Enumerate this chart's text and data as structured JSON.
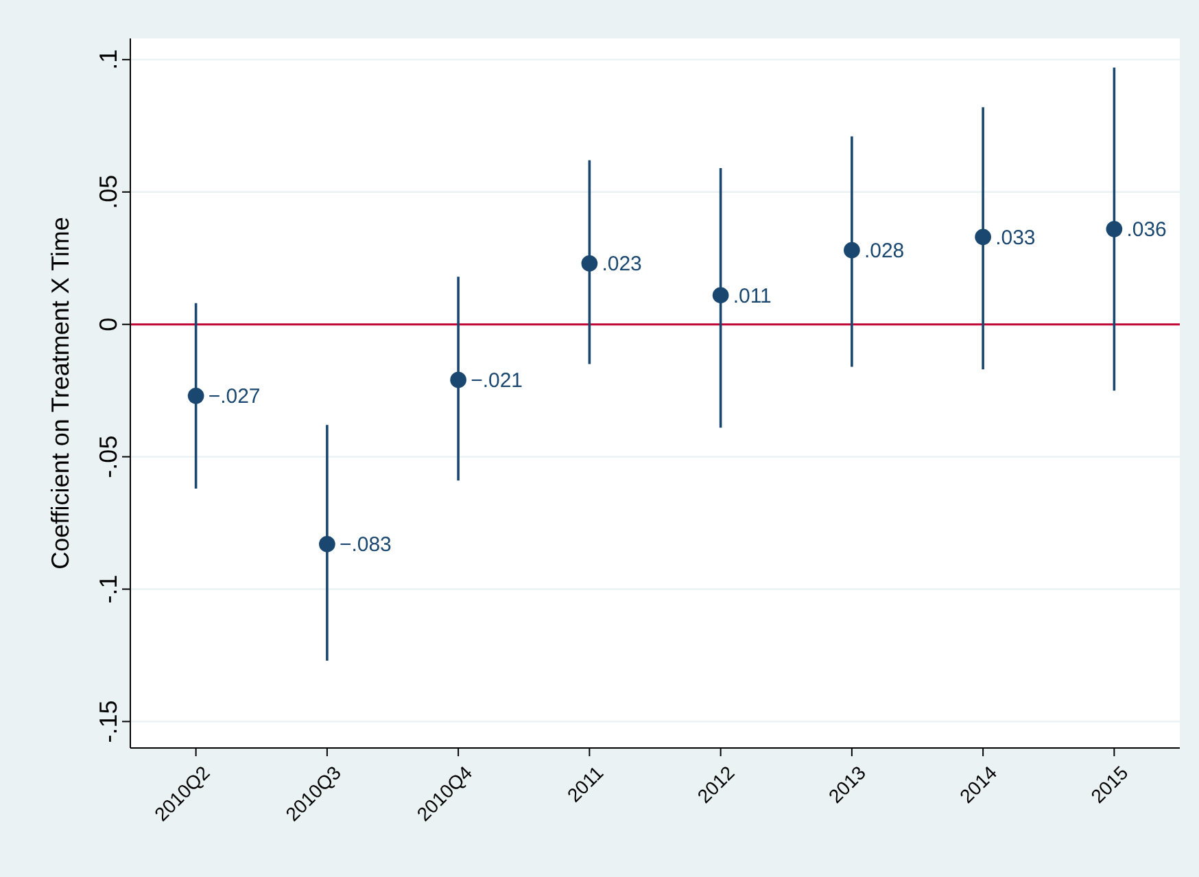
{
  "chart_data": {
    "type": "scatter",
    "ylabel": "Coefficient on Treatment X Time",
    "categories": [
      "2010Q2",
      "2010Q3",
      "2010Q4",
      "2011",
      "2012",
      "2013",
      "2014",
      "2015"
    ],
    "values": [
      -0.027,
      -0.083,
      -0.021,
      0.023,
      0.011,
      0.028,
      0.033,
      0.036
    ],
    "value_labels": [
      "−.027",
      "−.083",
      "−.021",
      ".023",
      ".011",
      ".028",
      ".033",
      ".036"
    ],
    "errors": [
      [
        -0.062,
        0.008
      ],
      [
        -0.127,
        -0.038
      ],
      [
        -0.059,
        0.018
      ],
      [
        -0.015,
        0.062
      ],
      [
        -0.039,
        0.059
      ],
      [
        -0.016,
        0.071
      ],
      [
        -0.017,
        0.082
      ],
      [
        -0.025,
        0.097
      ]
    ],
    "color": "#1a476f",
    "marker": "circle",
    "ylim": [
      -0.16,
      0.108
    ],
    "yticks": [
      {
        "value": -0.15,
        "label": "-.15"
      },
      {
        "value": -0.1,
        "label": "-.1"
      },
      {
        "value": -0.05,
        "label": "-.05"
      },
      0,
      {
        "value": 0.05,
        "label": ".05"
      },
      {
        "value": 0.1,
        "label": ".1"
      }
    ],
    "grid": "y",
    "ref_lines": [
      {
        "axis": "y",
        "value": 0,
        "color": "#c10534"
      }
    ]
  }
}
